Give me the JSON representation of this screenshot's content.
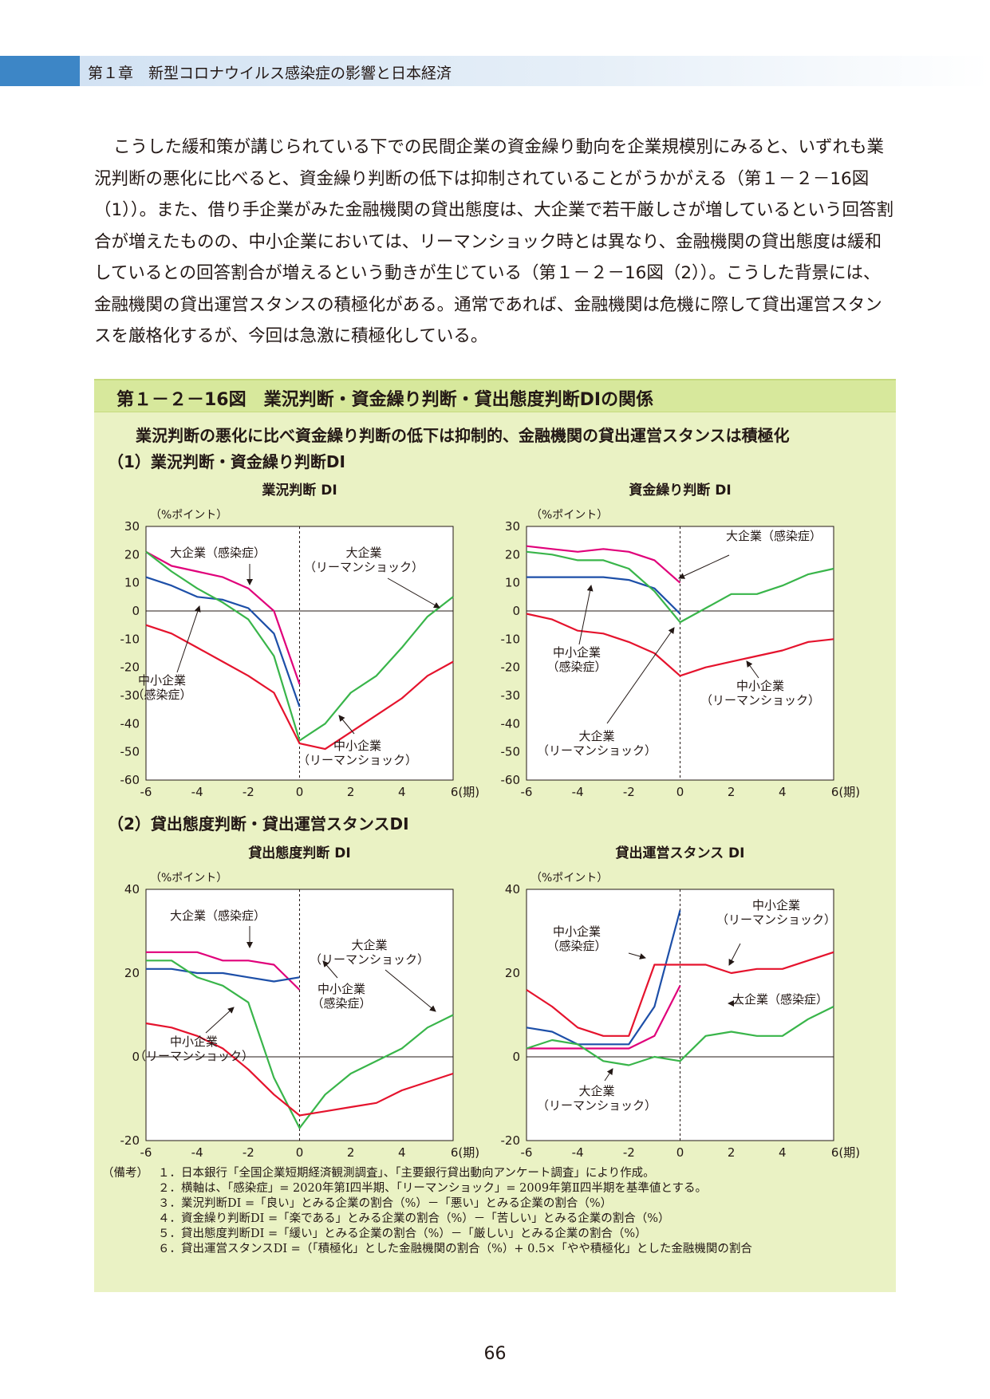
{
  "header": {
    "text": "第１章　新型コロナウイルス感染症の影響と日本経済"
  },
  "body_paragraph": "こうした緩和策が講じられている下での民間企業の資金繰り動向を企業規模別にみると、いずれも業況判断の悪化に比べると、資金繰り判断の低下は抑制されていることがうかがえる（第１－２－16図（1））。また、借り手企業がみた金融機関の貸出態度は、大企業で若干厳しさが増しているという回答割合が増えたものの、中小企業においては、リーマンショック時とは異なり、金融機関の貸出態度は緩和しているとの回答割合が増えるという動きが生じている（第１－２－16図（2））。こうした背景には、金融機関の貸出運営スタンスの積極化がある。通常であれば、金融機関は危機に際して貸出運営スタンスを厳格化するが、今回は急激に積極化している。",
  "figure": {
    "title": "第１－２－16図　業況判断・資金繰り判断・貸出態度判断DIの関係",
    "subtitle": "業況判断の悪化に比べ資金繰り判断の低下は抑制的、金融機関の貸出運営スタンスは積極化",
    "section1": "（1）業況判断・資金繰り判断DI",
    "section2": "（2）貸出態度判断・貸出運営スタンスDI",
    "unit_label": "（%ポイント）",
    "x_unit": "(期)"
  },
  "colors": {
    "large_covid": "#e0007a",
    "sme_covid": "#1d4fa8",
    "large_lehman": "#39b54a",
    "sme_lehman": "#e5132d"
  },
  "chart_data": [
    {
      "type": "line",
      "title": "業況判断 DI",
      "ylabel": "（%ポイント）",
      "xlabel": "(期)",
      "xlim": [
        -6,
        6
      ],
      "ylim": [
        -60,
        30
      ],
      "xticks": [
        -6,
        -4,
        -2,
        0,
        2,
        4,
        6
      ],
      "yticks": [
        30,
        20,
        10,
        0,
        -10,
        -20,
        -30,
        -40,
        -50,
        -60
      ],
      "series": [
        {
          "name": "大企業（感染症）",
          "key": "large_covid",
          "x": [
            -6,
            -5,
            -4,
            -3,
            -2,
            -1,
            0
          ],
          "y": [
            21,
            16,
            14,
            12,
            8,
            0,
            -26
          ]
        },
        {
          "name": "中小企業（感染症）",
          "key": "sme_covid",
          "x": [
            -6,
            -5,
            -4,
            -3,
            -2,
            -1,
            0
          ],
          "y": [
            12,
            9,
            5,
            4,
            1,
            -8,
            -34
          ]
        },
        {
          "name": "大企業（リーマンショック）",
          "key": "large_lehman",
          "x": [
            -6,
            -5,
            -4,
            -3,
            -2,
            -1,
            0,
            1,
            2,
            3,
            4,
            5,
            6
          ],
          "y": [
            21,
            14,
            8,
            3,
            -3,
            -16,
            -46,
            -40,
            -29,
            -23,
            -13,
            -2,
            5
          ]
        },
        {
          "name": "中小企業（リーマンショック）",
          "key": "sme_lehman",
          "x": [
            -6,
            -5,
            -4,
            -3,
            -2,
            -1,
            0,
            1,
            2,
            3,
            4,
            5,
            6
          ],
          "y": [
            -5,
            -8,
            -13,
            -18,
            -23,
            -29,
            -47,
            -49,
            -43,
            -37,
            -31,
            -23,
            -18
          ]
        }
      ],
      "annotations": [
        {
          "text": "大企業（感染症）"
        },
        {
          "text": "大企業",
          "text2": "（リーマンショック）"
        },
        {
          "text": "中小企業",
          "text2": "（感染症）"
        },
        {
          "text": "中小企業",
          "text2": "（リーマンショック）"
        }
      ]
    },
    {
      "type": "line",
      "title": "資金繰り判断 DI",
      "ylabel": "（%ポイント）",
      "xlabel": "(期)",
      "xlim": [
        -6,
        6
      ],
      "ylim": [
        -60,
        30
      ],
      "xticks": [
        -6,
        -4,
        -2,
        0,
        2,
        4,
        6
      ],
      "yticks": [
        30,
        20,
        10,
        0,
        -10,
        -20,
        -30,
        -40,
        -50,
        -60
      ],
      "series": [
        {
          "name": "大企業（感染症）",
          "key": "large_covid",
          "x": [
            -6,
            -5,
            -4,
            -3,
            -2,
            -1,
            0
          ],
          "y": [
            23,
            22,
            21,
            22,
            21,
            18,
            10
          ]
        },
        {
          "name": "中小企業（感染症）",
          "key": "sme_covid",
          "x": [
            -6,
            -5,
            -4,
            -3,
            -2,
            -1,
            0
          ],
          "y": [
            12,
            12,
            12,
            12,
            11,
            8,
            -1
          ]
        },
        {
          "name": "大企業（リーマンショック）",
          "key": "large_lehman",
          "x": [
            -6,
            -5,
            -4,
            -3,
            -2,
            -1,
            0,
            1,
            2,
            3,
            4,
            5,
            6
          ],
          "y": [
            21,
            20,
            18,
            18,
            15,
            7,
            -4,
            1,
            6,
            6,
            9,
            13,
            15
          ]
        },
        {
          "name": "中小企業（リーマンショック）",
          "key": "sme_lehman",
          "x": [
            -6,
            -5,
            -4,
            -3,
            -2,
            -1,
            0,
            1,
            2,
            3,
            4,
            5,
            6
          ],
          "y": [
            -1,
            -3,
            -7,
            -8,
            -11,
            -15,
            -23,
            -20,
            -18,
            -16,
            -14,
            -11,
            -10
          ]
        }
      ],
      "annotations": [
        {
          "text": "大企業（感染症）"
        },
        {
          "text": "中小企業",
          "text2": "（感染症）"
        },
        {
          "text": "中小企業",
          "text2": "（リーマンショック）"
        },
        {
          "text": "大企業",
          "text2": "（リーマンショック）"
        }
      ]
    },
    {
      "type": "line",
      "title": "貸出態度判断 DI",
      "ylabel": "（%ポイント）",
      "xlabel": "(期)",
      "xlim": [
        -6,
        6
      ],
      "ylim": [
        -20,
        40
      ],
      "xticks": [
        -6,
        -4,
        -2,
        0,
        2,
        4,
        6
      ],
      "yticks": [
        40,
        20,
        0,
        -20
      ],
      "series": [
        {
          "name": "大企業（感染症）",
          "key": "large_covid",
          "x": [
            -6,
            -5,
            -4,
            -3,
            -2,
            -1,
            0
          ],
          "y": [
            25,
            25,
            25,
            23,
            23,
            22,
            16
          ]
        },
        {
          "name": "中小企業（感染症）",
          "key": "sme_covid",
          "x": [
            -6,
            -5,
            -4,
            -3,
            -2,
            -1,
            0
          ],
          "y": [
            21,
            21,
            20,
            20,
            19,
            18,
            19
          ]
        },
        {
          "name": "大企業（リーマンショック）",
          "key": "large_lehman",
          "x": [
            -6,
            -5,
            -4,
            -3,
            -2,
            -1,
            0,
            1,
            2,
            3,
            4,
            5,
            6
          ],
          "y": [
            23,
            23,
            19,
            17,
            13,
            -5,
            -17,
            -9,
            -4,
            -1,
            2,
            7,
            10
          ]
        },
        {
          "name": "中小企業（リーマンショック）",
          "key": "sme_lehman",
          "x": [
            -6,
            -5,
            -4,
            -3,
            -2,
            -1,
            0,
            1,
            2,
            3,
            4,
            5,
            6
          ],
          "y": [
            8,
            7,
            5,
            2,
            -3,
            -9,
            -14,
            -13,
            -12,
            -11,
            -8,
            -6,
            -4
          ]
        }
      ],
      "annotations": [
        {
          "text": "大企業（感染症）"
        },
        {
          "text": "大企業",
          "text2": "（リーマンショック）"
        },
        {
          "text": "中小企業",
          "text2": "（感染症）"
        },
        {
          "text": "中小企業",
          "text2": "（リーマンショック）"
        }
      ]
    },
    {
      "type": "line",
      "title": "貸出運営スタンス DI",
      "ylabel": "（%ポイント）",
      "xlabel": "(期)",
      "xlim": [
        -6,
        6
      ],
      "ylim": [
        -20,
        40
      ],
      "xticks": [
        -6,
        -4,
        -2,
        0,
        2,
        4,
        6
      ],
      "yticks": [
        40,
        20,
        0,
        -20
      ],
      "series": [
        {
          "name": "大企業（感染症）",
          "key": "large_covid",
          "x": [
            -6,
            -5,
            -4,
            -3,
            -2,
            -1,
            0
          ],
          "y": [
            2,
            2,
            2,
            2,
            2,
            5,
            17
          ]
        },
        {
          "name": "中小企業（感染症）",
          "key": "sme_covid",
          "x": [
            -6,
            -5,
            -4,
            -3,
            -2,
            -1,
            0
          ],
          "y": [
            7,
            6,
            3,
            3,
            3,
            12,
            35
          ]
        },
        {
          "name": "大企業（リーマンショック）",
          "key": "large_lehman",
          "x": [
            -6,
            -5,
            -4,
            -3,
            -2,
            -1,
            0,
            1,
            2,
            3,
            4,
            5,
            6
          ],
          "y": [
            2,
            4,
            3,
            -1,
            -2,
            0,
            -1,
            5,
            6,
            5,
            5,
            9,
            12
          ]
        },
        {
          "name": "中小企業（リーマンショック）",
          "key": "sme_lehman",
          "x": [
            -6,
            -5,
            -4,
            -3,
            -2,
            -1,
            0,
            1,
            2,
            3,
            4,
            5,
            6
          ],
          "y": [
            16,
            12,
            7,
            5,
            5,
            22,
            22,
            22,
            20,
            21,
            21,
            23,
            25
          ]
        }
      ],
      "annotations": [
        {
          "text": "中小企業",
          "text2": "（リーマンショック）"
        },
        {
          "text": "中小企業",
          "text2": "（感染症）"
        },
        {
          "text": "大企業（感染症）"
        },
        {
          "text": "大企業",
          "text2": "（リーマンショック）"
        }
      ]
    }
  ],
  "notes": {
    "lead": "（備考）",
    "items": [
      "１．日本銀行「全国企業短期経済観測調査」、「主要銀行貸出動向アンケート調査」により作成。",
      "２．横軸は、「感染症」= 2020年第Ⅰ四半期、「リーマンショック」= 2009年第Ⅱ四半期を基準値とする。",
      "３．業況判断DI =「良い」とみる企業の割合（%）－「悪い」とみる企業の割合（%）",
      "４．資金繰り判断DI =「楽である」とみる企業の割合（%）－「苦しい」とみる企業の割合（%）",
      "５．貸出態度判断DI =「緩い」とみる企業の割合（%）－「厳しい」とみる企業の割合（%）",
      "６．貸出運営スタンスDI =（「積極化」とした金融機関の割合（%）+ 0.5×「やや積極化」とした金融機関の割合"
    ]
  },
  "page_number": "66"
}
